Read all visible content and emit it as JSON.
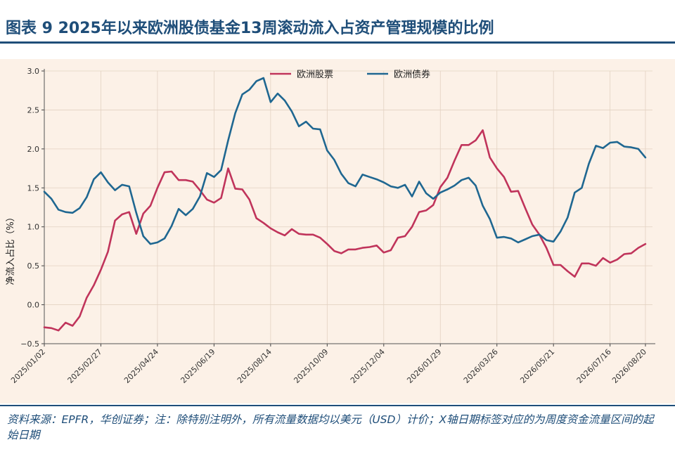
{
  "figure": {
    "title": "图表 9 2025年以来欧洲股债基金13周滚动流入占资产管理规模的比例",
    "source_note": "资料来源：EPFR，华创证券；注：除特别注明外，所有流量数据均以美元（USD）计价；X轴日期标签对应的为周度资金流量区间的起始日期"
  },
  "colors": {
    "title": "#1f4e79",
    "panel": "#fcf1e7"
  },
  "chart_data": {
    "type": "line",
    "ylabel": "净流入占比（%）",
    "ylim": [
      -0.5,
      3.0
    ],
    "yticks": [
      -0.5,
      0.0,
      0.5,
      1.0,
      1.5,
      2.0,
      2.5,
      3.0
    ],
    "ytick_labels": [
      "−0.5",
      "0.0",
      "0.5",
      "1.0",
      "1.5",
      "2.0",
      "2.5",
      "3.0"
    ],
    "xlim": [
      "2025-01-02",
      "2026-08-27"
    ],
    "xticks": [
      "2025/01/02",
      "2025/02/27",
      "2025/04/24",
      "2025/06/19",
      "2025/08/14",
      "2025/10/09",
      "2025/12/04",
      "2026/01/29",
      "2026/03/26",
      "2026/05/21",
      "2026/07/16",
      "2026/08/20"
    ],
    "grid": true,
    "legend_position": "top-center",
    "x_start": "2025-01-02",
    "x_step": "weekly",
    "series": [
      {
        "name": "欧洲股票",
        "color": "#c0345b",
        "values": [
          -0.29,
          -0.3,
          -0.33,
          -0.23,
          -0.27,
          -0.15,
          0.09,
          0.25,
          0.45,
          0.68,
          1.08,
          1.16,
          1.19,
          0.91,
          1.17,
          1.27,
          1.5,
          1.7,
          1.71,
          1.6,
          1.6,
          1.58,
          1.47,
          1.35,
          1.31,
          1.37,
          1.75,
          1.49,
          1.48,
          1.35,
          1.11,
          1.05,
          0.98,
          0.93,
          0.89,
          0.97,
          0.91,
          0.9,
          0.9,
          0.86,
          0.78,
          0.69,
          0.66,
          0.71,
          0.71,
          0.73,
          0.74,
          0.76,
          0.67,
          0.7,
          0.86,
          0.88,
          1.0,
          1.19,
          1.21,
          1.28,
          1.51,
          1.63,
          1.85,
          2.05,
          2.05,
          2.11,
          2.24,
          1.89,
          1.75,
          1.64,
          1.45,
          1.46,
          1.24,
          1.03,
          0.9,
          0.73,
          0.51,
          0.51,
          0.43,
          0.36,
          0.53,
          0.53,
          0.5,
          0.6,
          0.54,
          0.58,
          0.65,
          0.66,
          0.73,
          0.78
        ]
      },
      {
        "name": "欧洲债券",
        "color": "#1f6791",
        "values": [
          1.45,
          1.36,
          1.22,
          1.19,
          1.18,
          1.24,
          1.38,
          1.61,
          1.7,
          1.57,
          1.47,
          1.54,
          1.52,
          1.18,
          0.88,
          0.78,
          0.8,
          0.85,
          1.01,
          1.23,
          1.15,
          1.23,
          1.39,
          1.69,
          1.64,
          1.73,
          2.11,
          2.46,
          2.7,
          2.76,
          2.87,
          2.91,
          2.6,
          2.71,
          2.62,
          2.48,
          2.29,
          2.35,
          2.26,
          2.25,
          1.98,
          1.86,
          1.68,
          1.56,
          1.52,
          1.67,
          1.64,
          1.61,
          1.57,
          1.52,
          1.5,
          1.54,
          1.39,
          1.58,
          1.43,
          1.36,
          1.44,
          1.48,
          1.53,
          1.6,
          1.63,
          1.53,
          1.27,
          1.1,
          0.86,
          0.87,
          0.85,
          0.8,
          0.84,
          0.88,
          0.9,
          0.83,
          0.81,
          0.94,
          1.12,
          1.44,
          1.5,
          1.81,
          2.04,
          2.01,
          2.08,
          2.09,
          2.03,
          2.02,
          2.0,
          1.89
        ]
      }
    ]
  }
}
